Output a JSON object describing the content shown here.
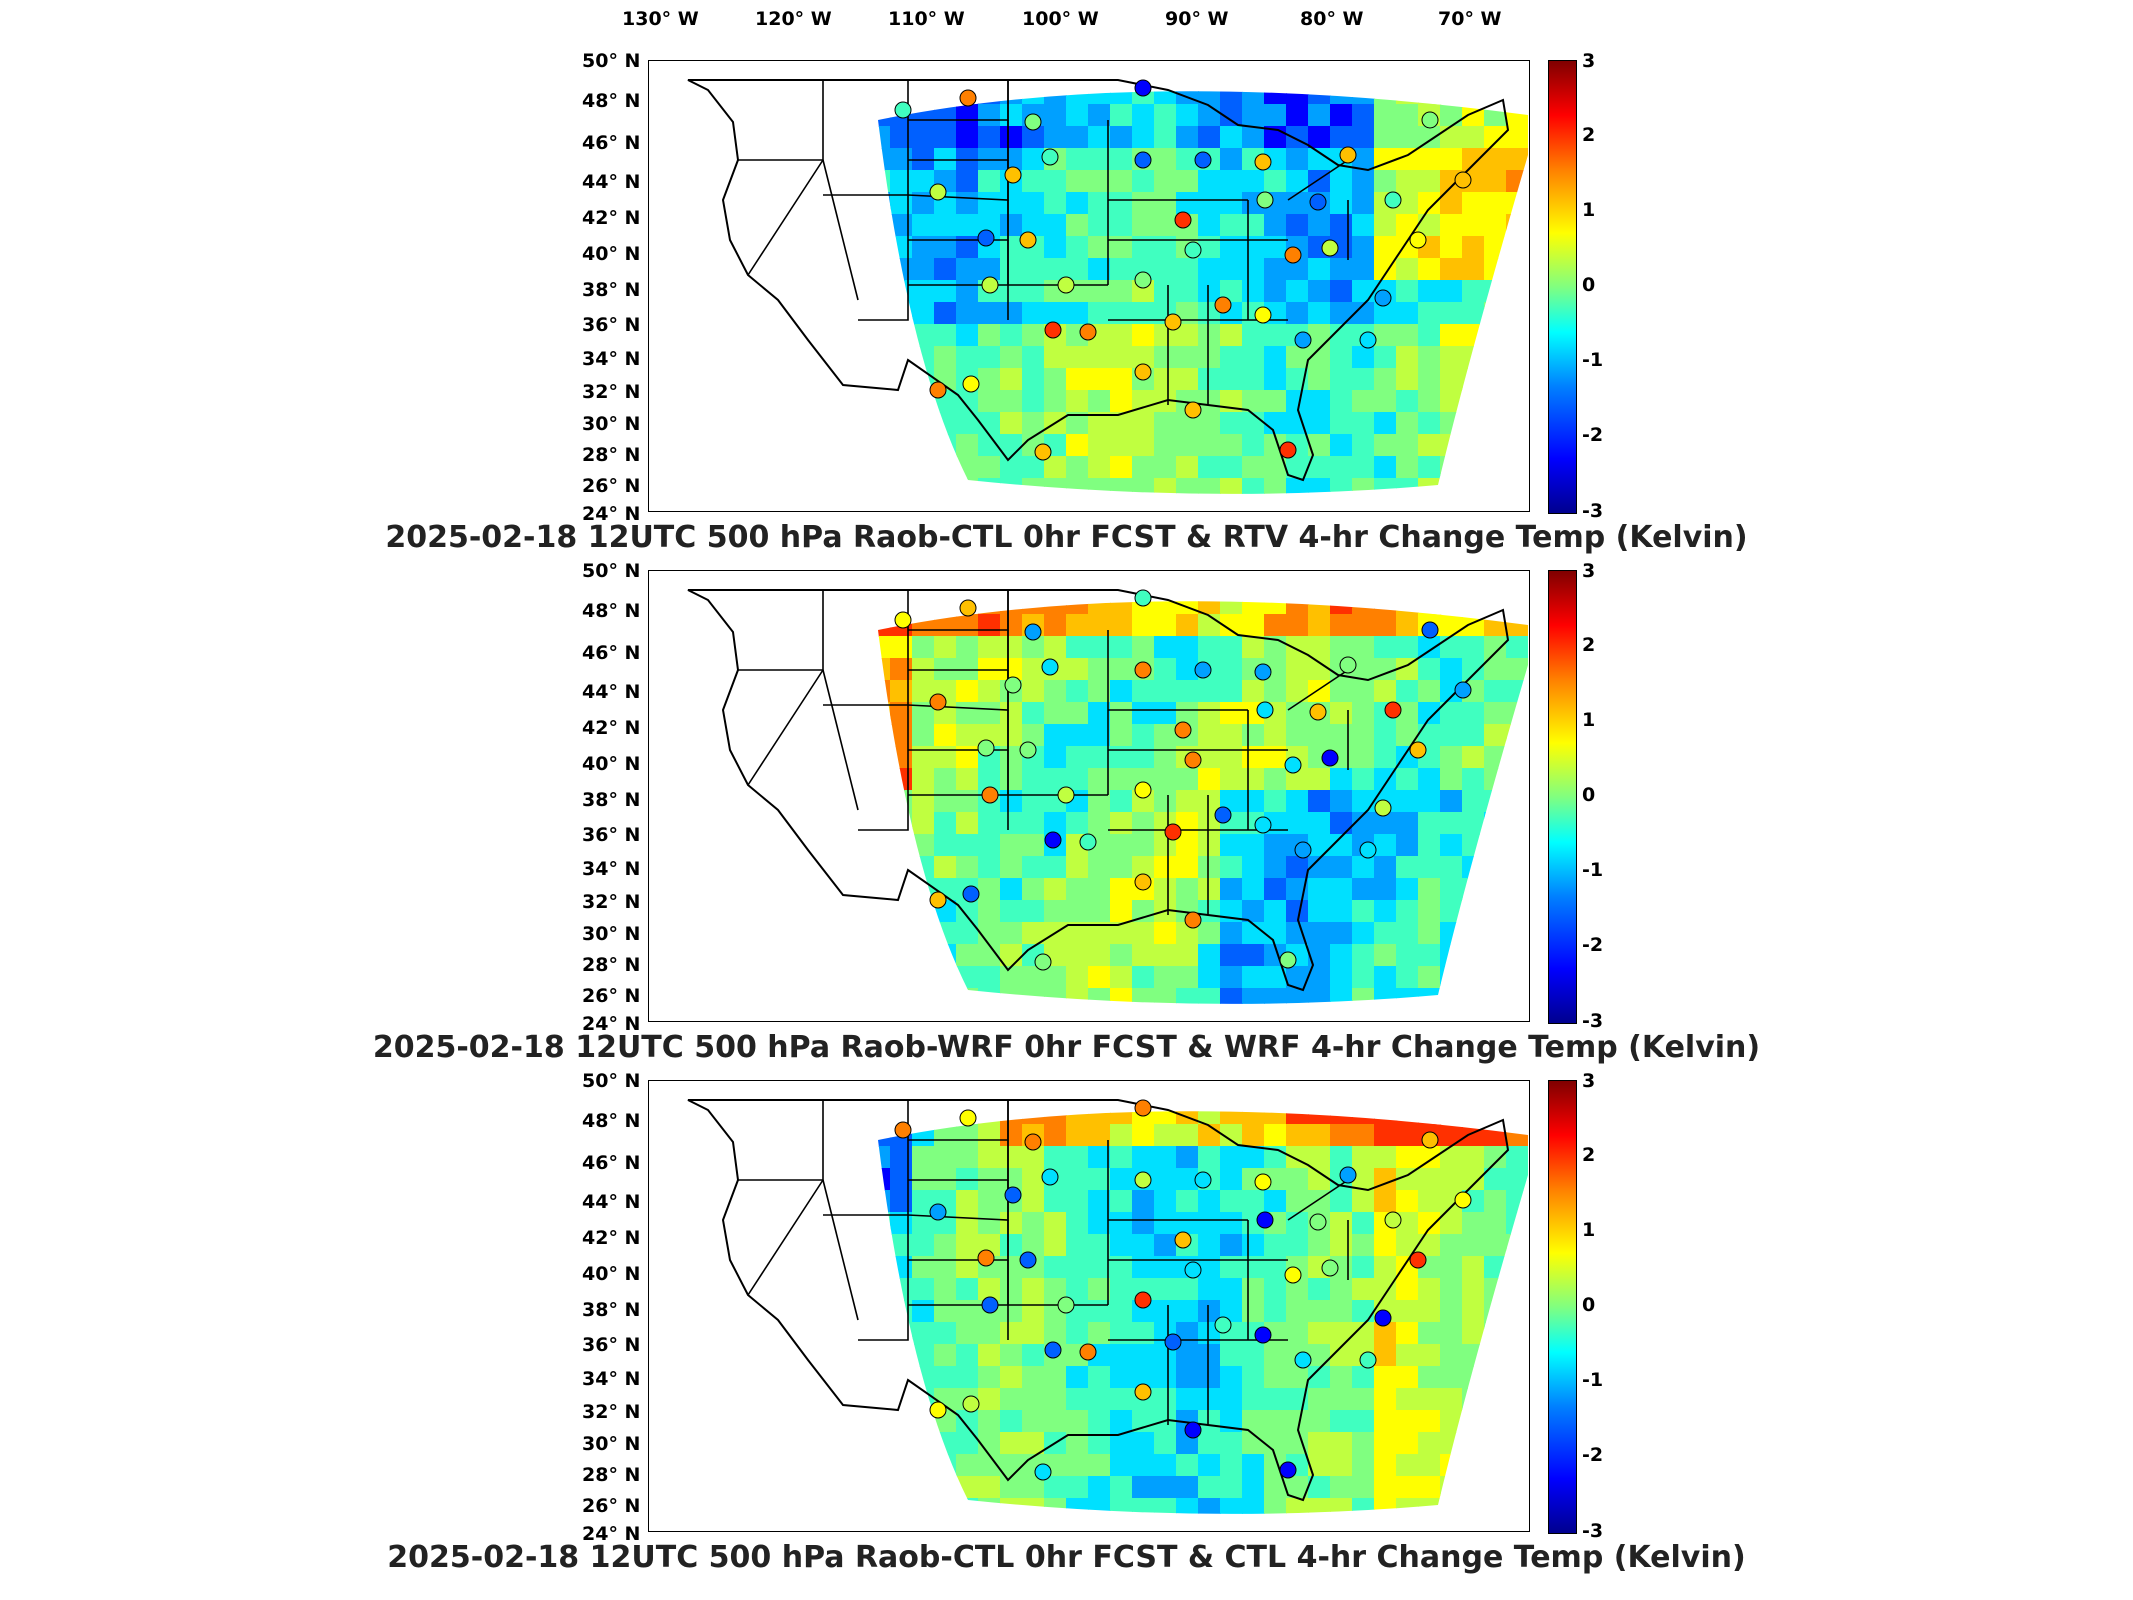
{
  "lon_labels": [
    "130° W",
    "120° W",
    "110° W",
    "100° W",
    "90° W",
    "80° W",
    "70° W"
  ],
  "lat_labels": [
    "50° N",
    "48° N",
    "46° N",
    "44° N",
    "42° N",
    "40° N",
    "38° N",
    "36° N",
    "34° N",
    "32° N",
    "30° N",
    "28° N",
    "26° N",
    "24° N"
  ],
  "colorbar_ticks": [
    "3",
    "2",
    "1",
    "0",
    "-1",
    "-2",
    "-3"
  ],
  "colors": {
    "cold": "#0000ff",
    "neutral": "#80ff80",
    "warm": "#ff0000"
  },
  "panels": [
    {
      "caption": "2025-02-18 12UTC 500 hPa Raob-CTL 0hr FCST & RTV 4-hr Change Temp (Kelvin)"
    },
    {
      "caption": "2025-02-18 12UTC 500 hPa Raob-WRF 0hr FCST & WRF 4-hr Change Temp (Kelvin)"
    },
    {
      "caption": "2025-02-18 12UTC 500 hPa Raob-CTL 0hr FCST & CTL 4-hr Change Temp (Kelvin)"
    }
  ]
}
